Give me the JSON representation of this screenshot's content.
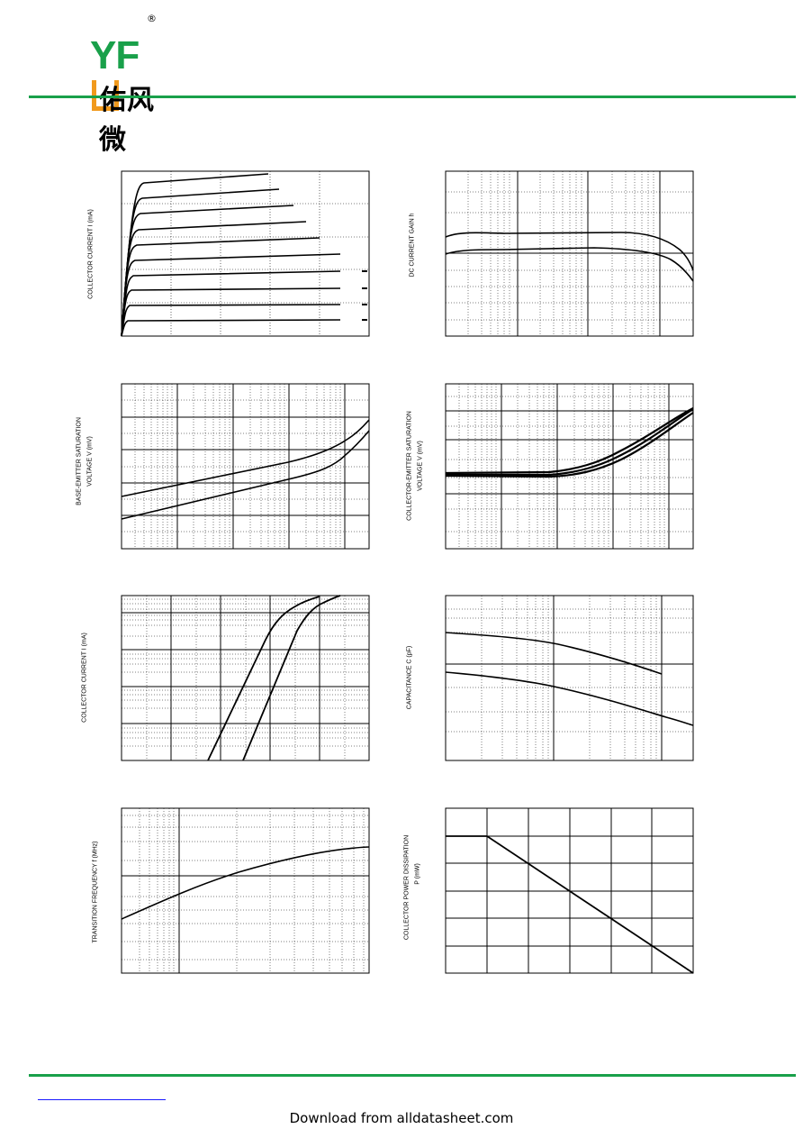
{
  "header": {
    "logo_latin": "YFW",
    "logo_registered": "®",
    "logo_chinese": "佑风微"
  },
  "footer": {
    "download_text": "Download from alldatasheet.com"
  },
  "colors": {
    "brand_green": "#19a04a",
    "brand_orange": "#f19a1d",
    "link_blue": "#1a1aff"
  },
  "charts": [
    {
      "id": "ic-vce",
      "ylabel": "COLLECTOR CURRENT   I   (mA)",
      "ylabel_sub": "C"
    },
    {
      "id": "hfe-ic",
      "ylabel": "DC CURRENT GAIN    h",
      "ylabel_sub": "FE"
    },
    {
      "id": "vbesat",
      "ylabel": "BASE-EMITTER SATURATION",
      "ylabel2": "VOLTAGE   V        (mV)",
      "ylabel_sub": "BEsat"
    },
    {
      "id": "vcesat",
      "ylabel": "COLLECTOR-EMITTER SATURATION",
      "ylabel2": "VOLTAGE   V        (mV)",
      "ylabel_sub": "CEsat"
    },
    {
      "id": "ic-vbe",
      "ylabel": "COLLECTOR CURRENT   I   (mA)",
      "ylabel_sub": "C"
    },
    {
      "id": "cap",
      "ylabel": "CAPACITANCE   C   (pF)"
    },
    {
      "id": "ft",
      "ylabel": "TRANSITION FREQUENCY   f     (MHz)",
      "ylabel_sub": "T"
    },
    {
      "id": "pc",
      "ylabel": "COLLECTOR POWER DISSIPATION",
      "ylabel2": "P     (mW)",
      "ylabel_sub": "C"
    }
  ]
}
